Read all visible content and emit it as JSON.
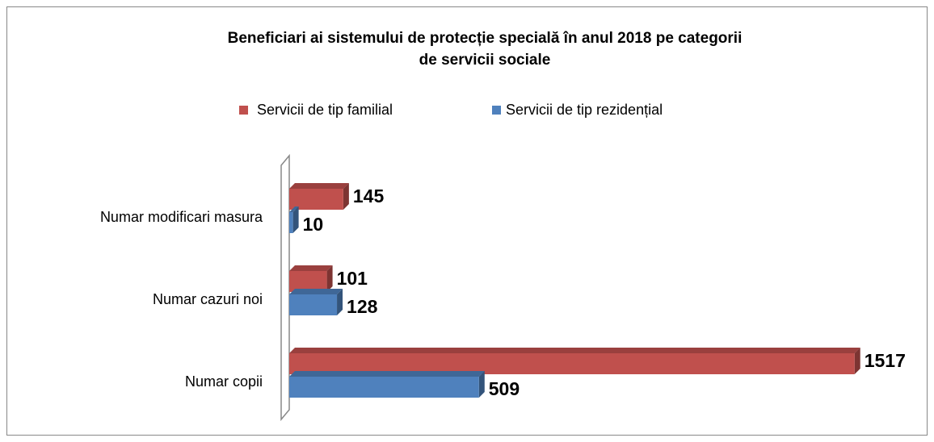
{
  "chart_data": {
    "type": "bar",
    "orientation": "horizontal",
    "title": "Beneficiari ai sistemului de protecție specială în anul 2018 pe categorii de servicii sociale",
    "categories": [
      "Numar modificari masura",
      "Numar cazuri noi",
      "Numar copii"
    ],
    "series": [
      {
        "name": "Servicii de tip familial",
        "color": "#c0504d",
        "values": [
          145,
          101,
          1517
        ]
      },
      {
        "name": "Servicii de tip rezidențial",
        "color": "#4f81bd",
        "values": [
          10,
          128,
          509
        ]
      }
    ],
    "xlim": [
      0,
      1600
    ],
    "legend": "top"
  }
}
